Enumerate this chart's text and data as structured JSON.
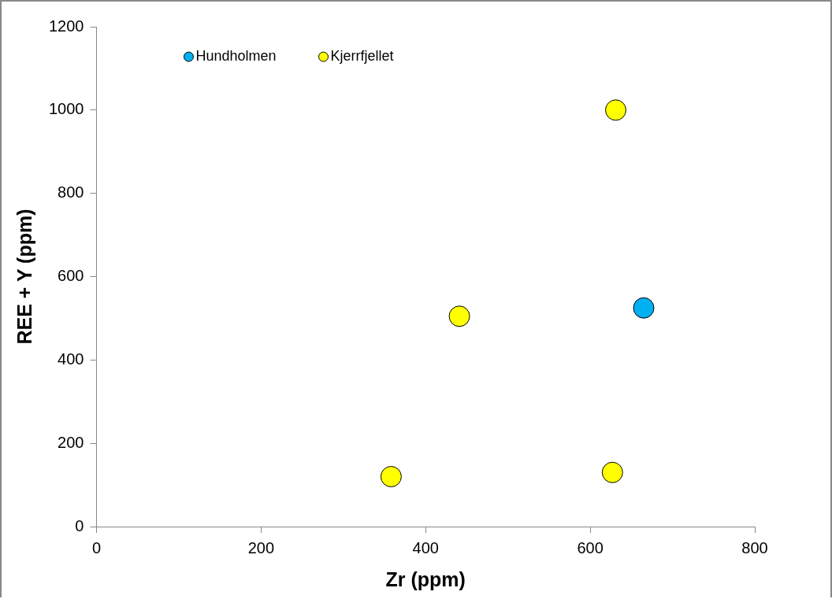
{
  "chart_data": {
    "type": "scatter",
    "xlabel": "Zr (ppm)",
    "ylabel": "REE + Y (ppm)",
    "xlim": [
      0,
      800
    ],
    "xticks": [
      0,
      200,
      400,
      600,
      800
    ],
    "ylim": [
      0,
      1200
    ],
    "yticks": [
      0,
      200,
      400,
      600,
      800,
      1000,
      1200
    ],
    "grid": false,
    "legend": "top left",
    "marker": "circle",
    "series": [
      {
        "name": "Hundholmen",
        "color": "#00b0f0",
        "x": [
          665
        ],
        "values": [
          525
        ]
      },
      {
        "name": "Kjerrfjellet",
        "color": "#ffff00",
        "x": [
          631,
          441,
          358,
          627
        ],
        "values": [
          1000,
          505,
          120,
          130
        ]
      }
    ]
  }
}
